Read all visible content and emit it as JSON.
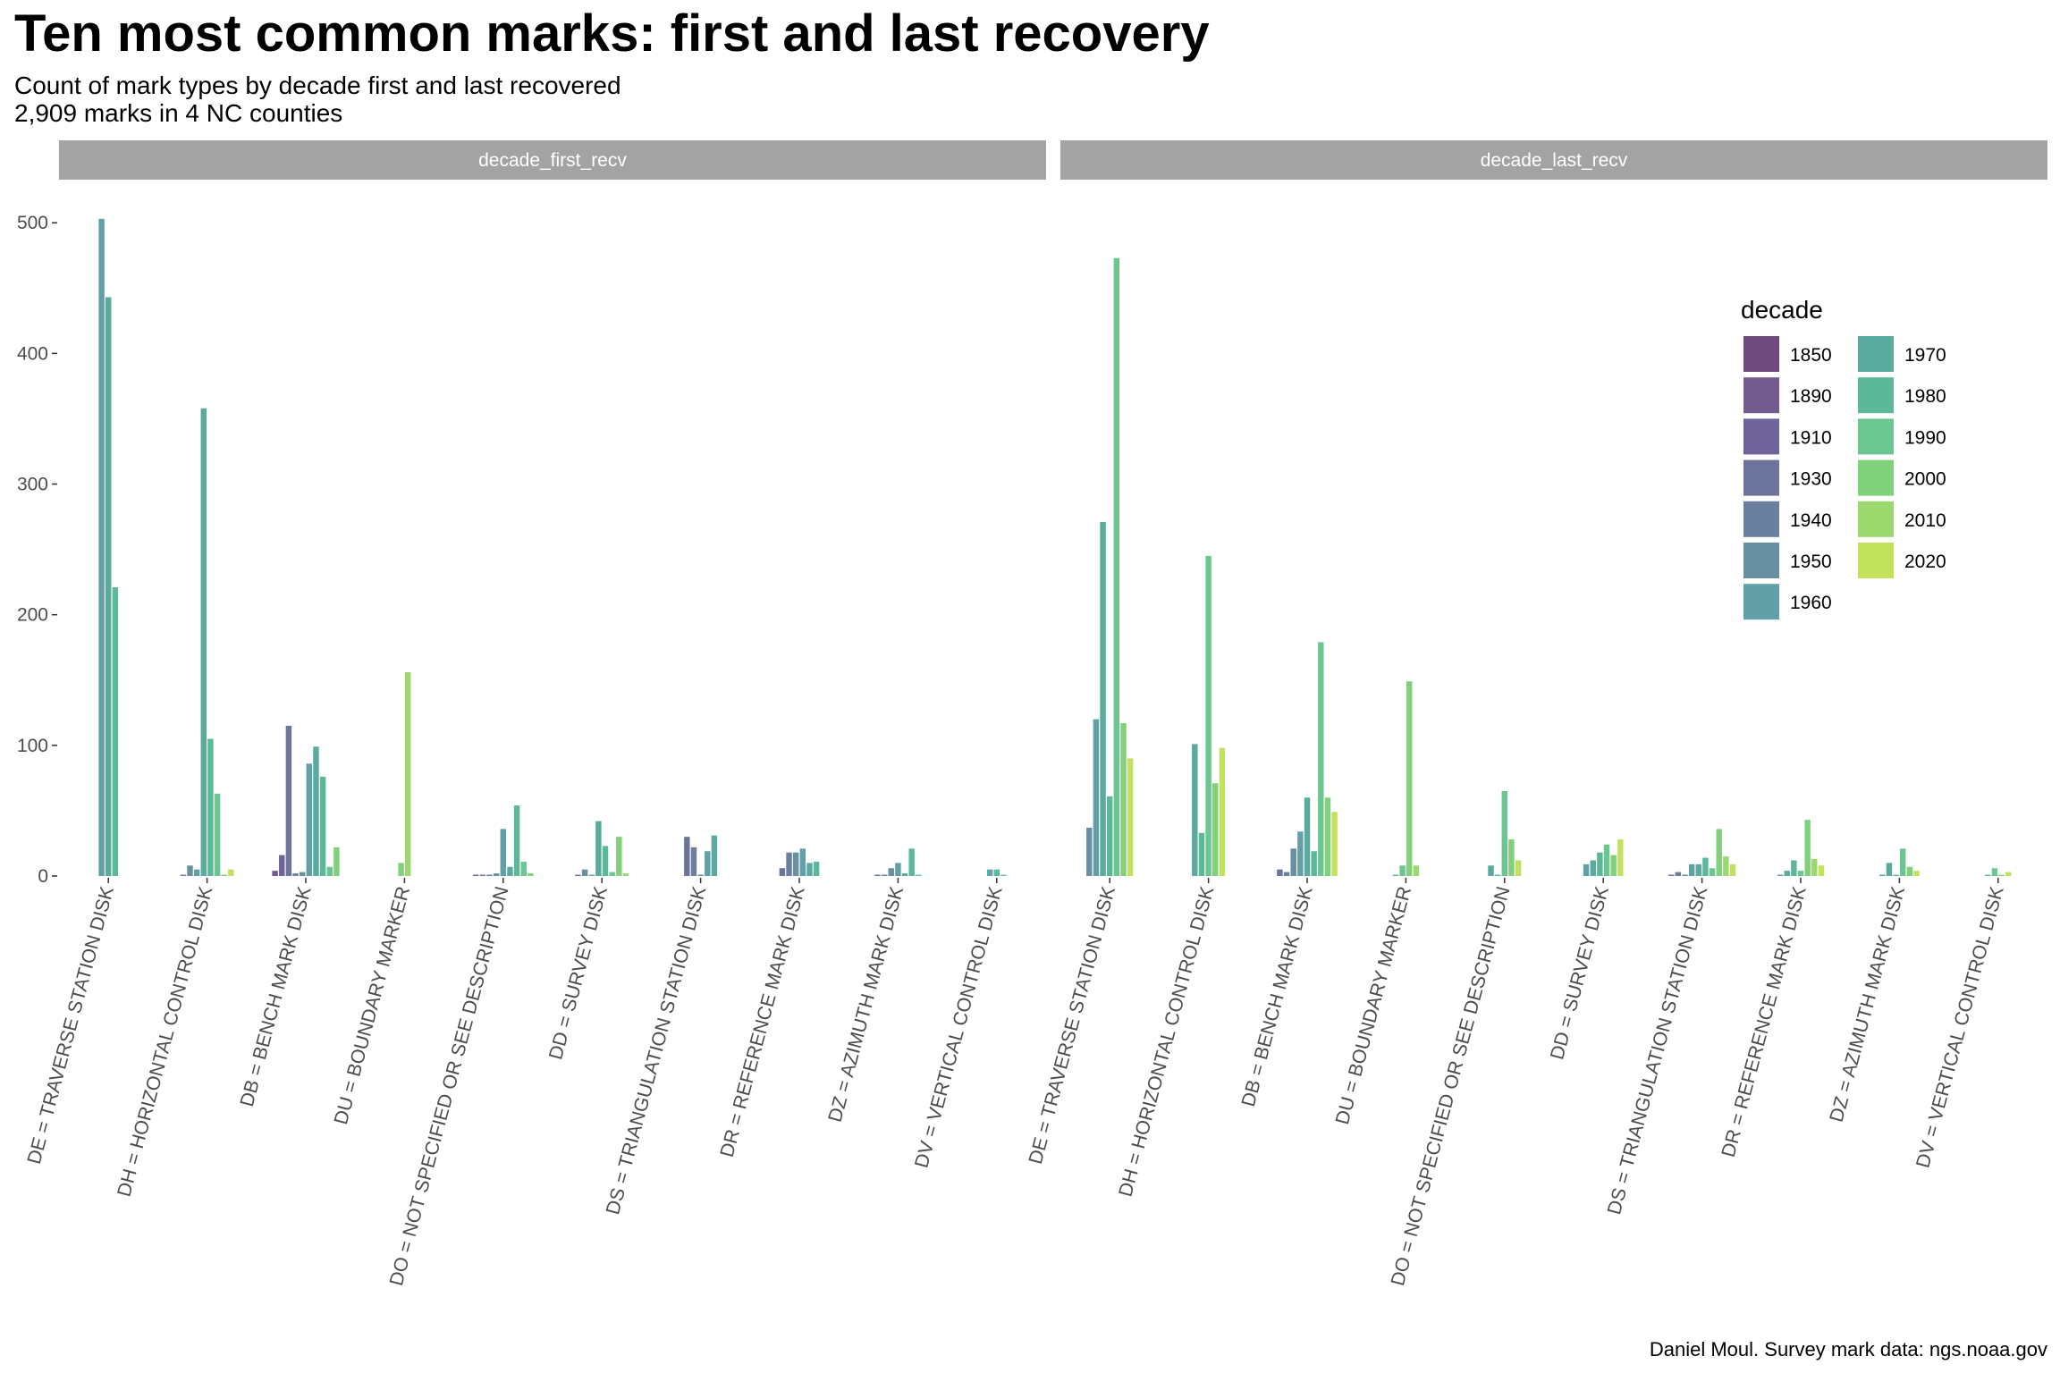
{
  "chart_data": {
    "type": "bar",
    "title": "Ten most common marks: first and last recovery",
    "subtitle_lines": [
      "Count of mark types by decade first and last recovered",
      "2,909 marks in 4 NC counties"
    ],
    "caption": "Daniel Moul. Survey mark data: ngs.noaa.gov",
    "xlabel": "",
    "ylabel": "",
    "ylim": [
      0,
      520
    ],
    "y_ticks": [
      "0",
      "100",
      "200",
      "300",
      "400",
      "500"
    ],
    "grid": false,
    "categories": [
      "DE = TRAVERSE STATION DISK",
      "DH = HORIZONTAL CONTROL DISK",
      "DB = BENCH MARK DISK",
      "DU = BOUNDARY MARKER",
      "DO = NOT SPECIFIED OR SEE DESCRIPTION",
      "DD = SURVEY DISK",
      "DS = TRIANGULATION STATION DISK",
      "DR = REFERENCE MARK DISK",
      "DZ = AZIMUTH MARK DISK",
      "DV = VERTICAL CONTROL DISK"
    ],
    "legend": {
      "title": "decade",
      "position": "right-inside",
      "entries": [
        "1850",
        "1890",
        "1910",
        "1930",
        "1940",
        "1950",
        "1960",
        "1970",
        "1980",
        "1990",
        "2000",
        "2010",
        "2020"
      ],
      "colors": [
        "#6e4a7c",
        "#735a8f",
        "#70649a",
        "#6c749c",
        "#6a809e",
        "#6890a0",
        "#61a0a6",
        "#5aaa9e",
        "#5db89a",
        "#6cc690",
        "#81d07c",
        "#9bd86d",
        "#c2e15c"
      ]
    },
    "panels": [
      {
        "strip": "decade_first_recv",
        "groups": [
          {
            "category": "DE = TRAVERSE STATION DISK",
            "bars": [
              {
                "decade": "1960",
                "value": 503
              },
              {
                "decade": "1970",
                "value": 443
              },
              {
                "decade": "1980",
                "value": 221
              }
            ]
          },
          {
            "category": "DH = HORIZONTAL CONTROL DISK",
            "bars": [
              {
                "decade": "1940",
                "value": 1
              },
              {
                "decade": "1950",
                "value": 8
              },
              {
                "decade": "1960",
                "value": 5
              },
              {
                "decade": "1970",
                "value": 358
              },
              {
                "decade": "1980",
                "value": 105
              },
              {
                "decade": "1990",
                "value": 63
              },
              {
                "decade": "2000",
                "value": 1
              },
              {
                "decade": "2020",
                "value": 5
              }
            ]
          },
          {
            "category": "DB = BENCH MARK DISK",
            "bars": [
              {
                "decade": "1890",
                "value": 4
              },
              {
                "decade": "1910",
                "value": 16
              },
              {
                "decade": "1930",
                "value": 115
              },
              {
                "decade": "1940",
                "value": 2
              },
              {
                "decade": "1950",
                "value": 3
              },
              {
                "decade": "1960",
                "value": 86
              },
              {
                "decade": "1970",
                "value": 99
              },
              {
                "decade": "1980",
                "value": 76
              },
              {
                "decade": "1990",
                "value": 7
              },
              {
                "decade": "2000",
                "value": 22
              }
            ]
          },
          {
            "category": "DU = BOUNDARY MARKER",
            "bars": [
              {
                "decade": "2000",
                "value": 10
              },
              {
                "decade": "2010",
                "value": 156
              }
            ]
          },
          {
            "category": "DO = NOT SPECIFIED OR SEE DESCRIPTION",
            "bars": [
              {
                "decade": "1910",
                "value": 1
              },
              {
                "decade": "1930",
                "value": 1
              },
              {
                "decade": "1940",
                "value": 1
              },
              {
                "decade": "1950",
                "value": 2
              },
              {
                "decade": "1960",
                "value": 36
              },
              {
                "decade": "1970",
                "value": 7
              },
              {
                "decade": "1980",
                "value": 54
              },
              {
                "decade": "1990",
                "value": 11
              },
              {
                "decade": "2000",
                "value": 2
              }
            ]
          },
          {
            "category": "DD = SURVEY DISK",
            "bars": [
              {
                "decade": "1930",
                "value": 1
              },
              {
                "decade": "1950",
                "value": 5
              },
              {
                "decade": "1960",
                "value": 1
              },
              {
                "decade": "1970",
                "value": 42
              },
              {
                "decade": "1980",
                "value": 23
              },
              {
                "decade": "1990",
                "value": 3
              },
              {
                "decade": "2000",
                "value": 30
              },
              {
                "decade": "2010",
                "value": 2
              }
            ]
          },
          {
            "category": "DS = TRIANGULATION STATION DISK",
            "bars": [
              {
                "decade": "1930",
                "value": 30
              },
              {
                "decade": "1940",
                "value": 22
              },
              {
                "decade": "1950",
                "value": 1
              },
              {
                "decade": "1960",
                "value": 19
              },
              {
                "decade": "1970",
                "value": 31
              }
            ]
          },
          {
            "category": "DR = REFERENCE MARK DISK",
            "bars": [
              {
                "decade": "1930",
                "value": 6
              },
              {
                "decade": "1940",
                "value": 18
              },
              {
                "decade": "1950",
                "value": 18
              },
              {
                "decade": "1960",
                "value": 21
              },
              {
                "decade": "1970",
                "value": 10
              },
              {
                "decade": "1980",
                "value": 11
              }
            ]
          },
          {
            "category": "DZ = AZIMUTH MARK DISK",
            "bars": [
              {
                "decade": "1930",
                "value": 1
              },
              {
                "decade": "1940",
                "value": 1
              },
              {
                "decade": "1950",
                "value": 6
              },
              {
                "decade": "1960",
                "value": 10
              },
              {
                "decade": "1970",
                "value": 2
              },
              {
                "decade": "1980",
                "value": 21
              },
              {
                "decade": "1990",
                "value": 1
              }
            ]
          },
          {
            "category": "DV = VERTICAL CONTROL DISK",
            "bars": [
              {
                "decade": "1970",
                "value": 5
              },
              {
                "decade": "1980",
                "value": 5
              },
              {
                "decade": "1990",
                "value": 1
              }
            ]
          }
        ]
      },
      {
        "strip": "decade_last_recv",
        "groups": [
          {
            "category": "DE = TRAVERSE STATION DISK",
            "bars": [
              {
                "decade": "1950",
                "value": 37
              },
              {
                "decade": "1960",
                "value": 120
              },
              {
                "decade": "1970",
                "value": 271
              },
              {
                "decade": "1980",
                "value": 61
              },
              {
                "decade": "1990",
                "value": 473
              },
              {
                "decade": "2000",
                "value": 117
              },
              {
                "decade": "2020",
                "value": 90
              }
            ]
          },
          {
            "category": "DH = HORIZONTAL CONTROL DISK",
            "bars": [
              {
                "decade": "1970",
                "value": 101
              },
              {
                "decade": "1980",
                "value": 33
              },
              {
                "decade": "1990",
                "value": 245
              },
              {
                "decade": "2000",
                "value": 71
              },
              {
                "decade": "2020",
                "value": 98
              }
            ]
          },
          {
            "category": "DB = BENCH MARK DISK",
            "bars": [
              {
                "decade": "1930",
                "value": 5
              },
              {
                "decade": "1940",
                "value": 3
              },
              {
                "decade": "1950",
                "value": 21
              },
              {
                "decade": "1960",
                "value": 34
              },
              {
                "decade": "1970",
                "value": 60
              },
              {
                "decade": "1980",
                "value": 19
              },
              {
                "decade": "1990",
                "value": 179
              },
              {
                "decade": "2000",
                "value": 60
              },
              {
                "decade": "2020",
                "value": 49
              }
            ]
          },
          {
            "category": "DU = BOUNDARY MARKER",
            "bars": [
              {
                "decade": "1980",
                "value": 1
              },
              {
                "decade": "1990",
                "value": 8
              },
              {
                "decade": "2000",
                "value": 149
              },
              {
                "decade": "2010",
                "value": 8
              }
            ]
          },
          {
            "category": "DO = NOT SPECIFIED OR SEE DESCRIPTION",
            "bars": [
              {
                "decade": "1970",
                "value": 8
              },
              {
                "decade": "1980",
                "value": 1
              },
              {
                "decade": "1990",
                "value": 65
              },
              {
                "decade": "2000",
                "value": 28
              },
              {
                "decade": "2020",
                "value": 12
              }
            ]
          },
          {
            "category": "DD = SURVEY DISK",
            "bars": [
              {
                "decade": "1960",
                "value": 9
              },
              {
                "decade": "1970",
                "value": 12
              },
              {
                "decade": "1980",
                "value": 18
              },
              {
                "decade": "1990",
                "value": 24
              },
              {
                "decade": "2000",
                "value": 16
              },
              {
                "decade": "2020",
                "value": 28
              }
            ]
          },
          {
            "category": "DS = TRIANGULATION STATION DISK",
            "bars": [
              {
                "decade": "1930",
                "value": 1
              },
              {
                "decade": "1940",
                "value": 3
              },
              {
                "decade": "1950",
                "value": 1
              },
              {
                "decade": "1960",
                "value": 9
              },
              {
                "decade": "1970",
                "value": 9
              },
              {
                "decade": "1980",
                "value": 14
              },
              {
                "decade": "1990",
                "value": 6
              },
              {
                "decade": "2000",
                "value": 36
              },
              {
                "decade": "2010",
                "value": 15
              },
              {
                "decade": "2020",
                "value": 9
              }
            ]
          },
          {
            "category": "DR = REFERENCE MARK DISK",
            "bars": [
              {
                "decade": "1960",
                "value": 1
              },
              {
                "decade": "1970",
                "value": 4
              },
              {
                "decade": "1980",
                "value": 12
              },
              {
                "decade": "1990",
                "value": 4
              },
              {
                "decade": "2000",
                "value": 43
              },
              {
                "decade": "2010",
                "value": 13
              },
              {
                "decade": "2020",
                "value": 8
              }
            ]
          },
          {
            "category": "DZ = AZIMUTH MARK DISK",
            "bars": [
              {
                "decade": "1960",
                "value": 1
              },
              {
                "decade": "1970",
                "value": 10
              },
              {
                "decade": "1980",
                "value": 1
              },
              {
                "decade": "1990",
                "value": 21
              },
              {
                "decade": "2000",
                "value": 7
              },
              {
                "decade": "2020",
                "value": 4
              }
            ]
          },
          {
            "category": "DV = VERTICAL CONTROL DISK",
            "bars": [
              {
                "decade": "1980",
                "value": 1
              },
              {
                "decade": "1990",
                "value": 6
              },
              {
                "decade": "2000",
                "value": 1
              },
              {
                "decade": "2020",
                "value": 3
              }
            ]
          }
        ]
      }
    ]
  }
}
